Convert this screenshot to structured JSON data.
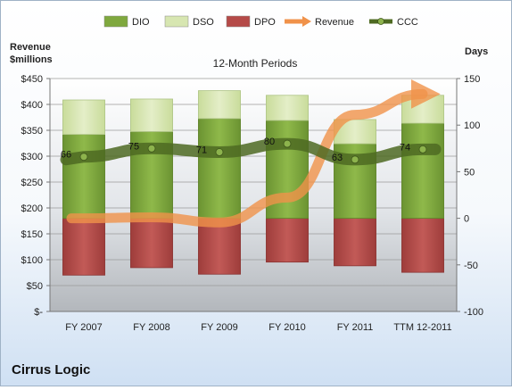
{
  "chart_data": {
    "type": "bar",
    "title": "12-Month Periods",
    "company": "Cirrus Logic",
    "left_axis_title": "Revenue\n$millions",
    "right_axis_title": "Days",
    "left_ticks": [
      "$-",
      "$50",
      "$100",
      "$150",
      "$200",
      "$250",
      "$300",
      "$350",
      "$400",
      "$450"
    ],
    "right_ticks": [
      "-100",
      "-50",
      "0",
      "50",
      "100",
      "150"
    ],
    "ylim_left": [
      0,
      450
    ],
    "ylim_right": [
      -100,
      150
    ],
    "categories": [
      "FY 2007",
      "FY 2008",
      "FY 2009",
      "FY 2010",
      "FY 2011",
      "TTM 12-2011"
    ],
    "legend_position": "top",
    "series": [
      {
        "name": "DIO",
        "type": "stacked-bar",
        "axis": "days",
        "color": "#7fa83e",
        "values": [
          90,
          93,
          107,
          105,
          80,
          102
        ]
      },
      {
        "name": "DSO",
        "type": "stacked-bar",
        "axis": "days",
        "color": "#d7e6b1",
        "values": [
          37,
          35,
          30,
          27,
          26,
          30
        ]
      },
      {
        "name": "DPO",
        "type": "stacked-bar",
        "axis": "days",
        "color": "#b54a48",
        "values": [
          -61,
          -53,
          -60,
          -47,
          -51,
          -58
        ]
      },
      {
        "name": "Revenue",
        "type": "line",
        "axis": "revenue",
        "color": "#f0924a",
        "values": [
          180,
          182,
          172,
          220,
          380,
          420
        ]
      },
      {
        "name": "CCC",
        "type": "line",
        "axis": "days",
        "color": "#4e6a22",
        "values": [
          66,
          75,
          71,
          80,
          63,
          74
        ]
      }
    ],
    "grid": true
  }
}
